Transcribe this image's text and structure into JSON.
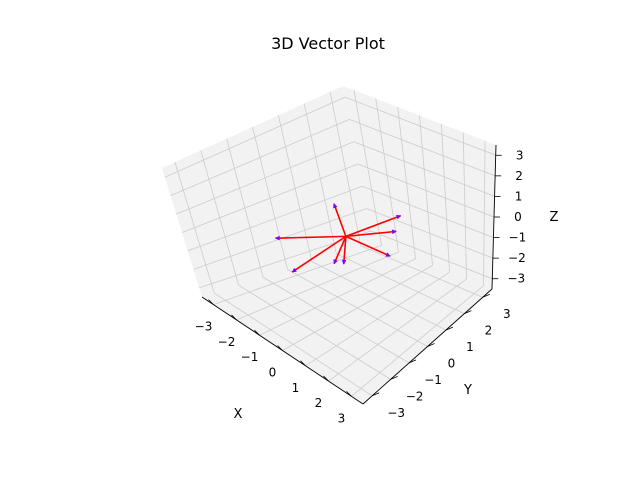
{
  "chart_data": {
    "type": "quiver3d",
    "title": "3D Vector Plot",
    "xlabel": "X",
    "ylabel": "Y",
    "zlabel": "Z",
    "xlim": [
      -3.5,
      3.5
    ],
    "ylim": [
      -3.5,
      3.5
    ],
    "zlim": [
      -3.5,
      3.5
    ],
    "x_ticks": [
      -3,
      -2,
      -1,
      0,
      1,
      2,
      3
    ],
    "y_ticks": [
      -3,
      -2,
      -1,
      0,
      1,
      2,
      3
    ],
    "z_ticks": [
      -3,
      -2,
      -1,
      0,
      1,
      2,
      3
    ],
    "x_tick_labels": [
      "−3",
      "−2",
      "−1",
      "0",
      "1",
      "2",
      "3"
    ],
    "y_tick_labels": [
      "−3",
      "−2",
      "−1",
      "0",
      "1",
      "2",
      "3"
    ],
    "z_tick_labels": [
      "−3",
      "−2",
      "−1",
      "0",
      "1",
      "2",
      "3"
    ],
    "grid": true,
    "origin": [
      0,
      0,
      0
    ],
    "vectors": [
      {
        "u": 0.3,
        "v": -0.5,
        "w": 2.1
      },
      {
        "u": 2.2,
        "v": 0.5,
        "w": 1.8
      },
      {
        "u": -2.3,
        "v": -1.0,
        "w": -0.8
      },
      {
        "u": -0.5,
        "v": -2.0,
        "w": -0.8
      },
      {
        "u": 1.6,
        "v": 0.4,
        "w": -0.4
      },
      {
        "u": 0.9,
        "v": -1.0,
        "w": -0.2
      },
      {
        "u": 1.1,
        "v": 1.2,
        "w": 0.0
      },
      {
        "u": 0.3,
        "v": -0.9,
        "w": -0.6
      }
    ],
    "colors": {
      "vector": "#ff0000",
      "tip": "#7b00ff",
      "pane": "#f2f2f2",
      "grid": "#cccccc",
      "axis": "#000000"
    }
  }
}
